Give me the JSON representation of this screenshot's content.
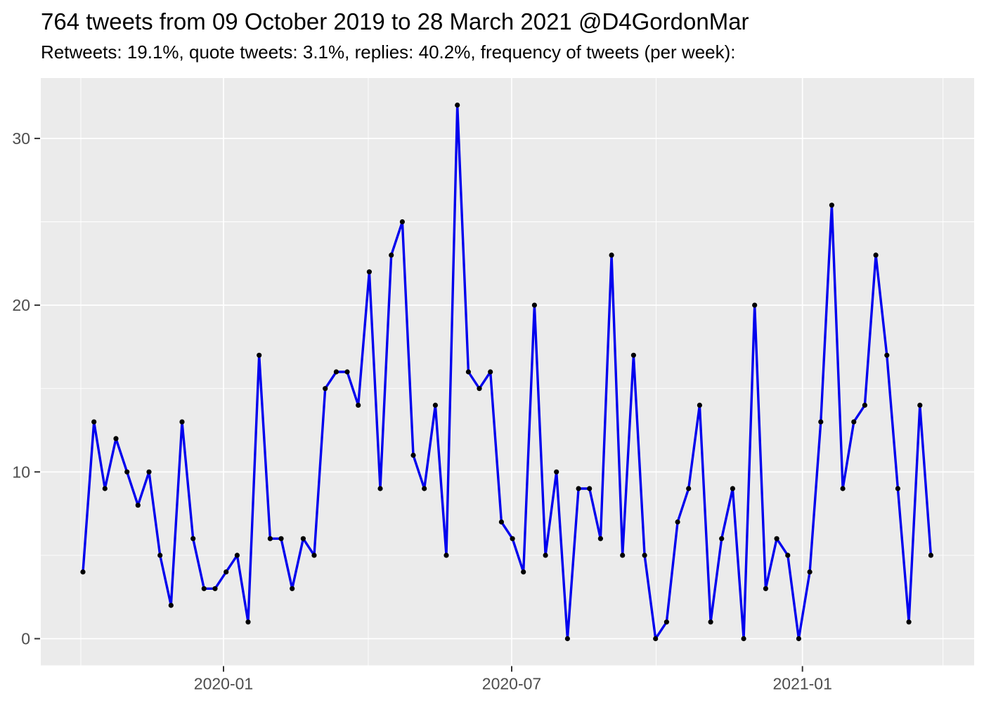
{
  "header": {
    "title": "764 tweets from 09 October 2019 to 28 March 2021 @D4GordonMar",
    "subtitle": "Retweets: 19.1%, quote tweets: 3.1%, replies: 40.2%, frequency of tweets (per week):"
  },
  "account": "@D4GordonMar",
  "stats": {
    "total_tweets": 764,
    "retweets_pct": 19.1,
    "quote_tweets_pct": 3.1,
    "replies_pct": 40.2
  },
  "chart_data": {
    "type": "line",
    "title": "764 tweets from 09 October 2019 to 28 March 2021 @D4GordonMar",
    "subtitle": "Retweets: 19.1%, quote tweets: 3.1%, replies: 40.2%, frequency of tweets (per week):",
    "xlabel": "",
    "ylabel": "",
    "x_start_date": "2019-10-06",
    "x_end_date": "2021-03-28",
    "x_interval": "weekly",
    "values": [
      4,
      13,
      9,
      12,
      10,
      8,
      10,
      5,
      2,
      13,
      6,
      3,
      3,
      4,
      5,
      1,
      17,
      6,
      6,
      3,
      6,
      5,
      15,
      16,
      16,
      14,
      22,
      9,
      23,
      25,
      11,
      9,
      14,
      5,
      32,
      16,
      15,
      16,
      7,
      6,
      4,
      20,
      5,
      10,
      0,
      9,
      9,
      6,
      23,
      5,
      17,
      5,
      0,
      1,
      7,
      9,
      14,
      1,
      6,
      9,
      0,
      20,
      3,
      6,
      5,
      0,
      4,
      13,
      26,
      9,
      13,
      14,
      23,
      17,
      9,
      1,
      14,
      5
    ],
    "ylim": [
      0,
      32
    ],
    "y_major_ticks": [
      0,
      10,
      20,
      30
    ],
    "y_minor_ticks": [
      5,
      15,
      25
    ],
    "y_tick_labels": [
      "0",
      "10",
      "20",
      "30"
    ],
    "x_tick_labels": [
      "2020-01",
      "2020-07",
      "2021-01"
    ],
    "grid": "on",
    "legend": "none",
    "colors": {
      "line": "#0000EE",
      "point": "#000000",
      "panel_bg": "#EBEBEB",
      "grid": "#FFFFFF",
      "axis_text": "#4D4D4D",
      "tick_mark": "#333333",
      "title_text": "#000000",
      "page_bg": "#FFFFFF"
    }
  }
}
